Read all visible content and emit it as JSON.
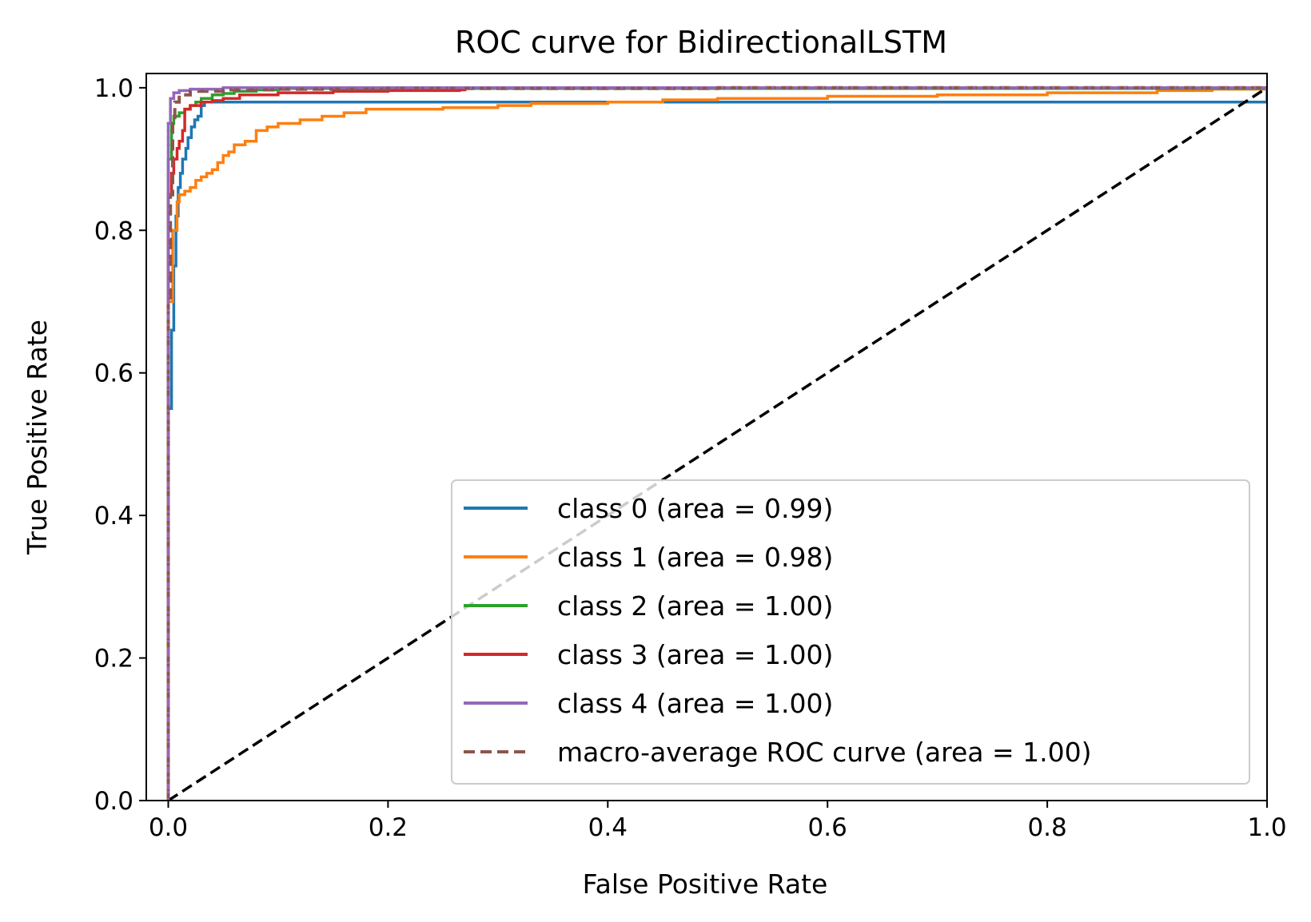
{
  "chart_data": {
    "type": "line",
    "title": "ROC curve for BidirectionalLSTM",
    "xlabel": "False Positive Rate",
    "ylabel": "True Positive Rate",
    "xlim": [
      -0.02,
      1.0
    ],
    "ylim": [
      0.0,
      1.02
    ],
    "xticks": [
      "0.0",
      "0.2",
      "0.4",
      "0.6",
      "0.8",
      "1.0"
    ],
    "yticks": [
      "0.0",
      "0.2",
      "0.4",
      "0.6",
      "0.8",
      "1.0"
    ],
    "grid": false,
    "legend_position": "lower-right",
    "series": [
      {
        "name": "class 0 (area = 0.99)",
        "color": "#1f77b4",
        "dash": "solid",
        "x": [
          0.0,
          0.0,
          0.003,
          0.005,
          0.007,
          0.009,
          0.011,
          0.013,
          0.016,
          0.018,
          0.021,
          0.024,
          0.027,
          0.03,
          0.033,
          1.0
        ],
        "y": [
          0.0,
          0.55,
          0.66,
          0.75,
          0.82,
          0.86,
          0.88,
          0.9,
          0.915,
          0.93,
          0.945,
          0.955,
          0.96,
          0.975,
          0.98,
          1.0
        ]
      },
      {
        "name": "class 1 (area = 0.98)",
        "color": "#ff7f0e",
        "dash": "solid",
        "x": [
          0.0,
          0.0,
          0.004,
          0.008,
          0.01,
          0.015,
          0.02,
          0.025,
          0.03,
          0.035,
          0.04,
          0.045,
          0.05,
          0.055,
          0.06,
          0.07,
          0.08,
          0.09,
          0.1,
          0.12,
          0.14,
          0.16,
          0.18,
          0.2,
          0.25,
          0.3,
          0.33,
          0.4,
          0.45,
          0.5,
          0.6,
          0.7,
          0.8,
          0.9,
          0.95,
          1.0
        ],
        "y": [
          0.0,
          0.7,
          0.8,
          0.84,
          0.85,
          0.855,
          0.86,
          0.87,
          0.875,
          0.88,
          0.885,
          0.895,
          0.905,
          0.91,
          0.92,
          0.925,
          0.94,
          0.945,
          0.95,
          0.955,
          0.96,
          0.965,
          0.97,
          0.97,
          0.972,
          0.975,
          0.978,
          0.98,
          0.983,
          0.985,
          0.988,
          0.99,
          0.993,
          0.996,
          0.998,
          1.0
        ]
      },
      {
        "name": "class 2 (area = 1.00)",
        "color": "#2ca02c",
        "dash": "solid",
        "x": [
          0.0,
          0.0,
          0.003,
          0.005,
          0.01,
          0.015,
          0.02,
          0.025,
          0.03,
          0.04,
          0.05,
          0.06,
          0.08,
          0.1,
          1.0
        ],
        "y": [
          0.0,
          0.9,
          0.95,
          0.96,
          0.965,
          0.97,
          0.975,
          0.98,
          0.985,
          0.99,
          0.992,
          0.995,
          0.997,
          0.999,
          1.0
        ]
      },
      {
        "name": "class 3 (area = 1.00)",
        "color": "#d62728",
        "dash": "solid",
        "x": [
          0.0,
          0.0,
          0.003,
          0.005,
          0.008,
          0.01,
          0.013,
          0.015,
          0.02,
          0.03,
          0.04,
          0.05,
          0.065,
          0.1,
          0.15,
          0.2,
          0.265,
          0.27,
          1.0
        ],
        "y": [
          0.0,
          0.85,
          0.88,
          0.9,
          0.915,
          0.925,
          0.94,
          0.97,
          0.975,
          0.98,
          0.982,
          0.985,
          0.99,
          0.993,
          0.995,
          0.996,
          0.997,
          1.0,
          1.0
        ]
      },
      {
        "name": "class 4 (area = 1.00)",
        "color": "#9467bd",
        "dash": "solid",
        "x": [
          0.0,
          0.0,
          0.002,
          0.005,
          0.01,
          0.02,
          0.05,
          1.0
        ],
        "y": [
          0.0,
          0.95,
          0.985,
          0.993,
          0.996,
          0.998,
          1.0,
          1.0
        ]
      },
      {
        "name": "macro-average ROC curve (area = 1.00)",
        "color": "#8c564b",
        "dash": "dashed",
        "x": [
          0.0,
          0.0,
          0.002,
          0.004,
          0.006,
          0.01,
          0.02,
          0.05,
          0.1,
          0.2,
          0.5,
          1.0
        ],
        "y": [
          0.0,
          0.7,
          0.85,
          0.95,
          0.98,
          0.99,
          0.995,
          0.997,
          0.998,
          0.999,
          1.0,
          1.0
        ]
      }
    ],
    "reference_line": {
      "color": "#000000",
      "dash": "dashed",
      "x": [
        0.0,
        1.0
      ],
      "y": [
        0.0,
        1.0
      ]
    }
  }
}
